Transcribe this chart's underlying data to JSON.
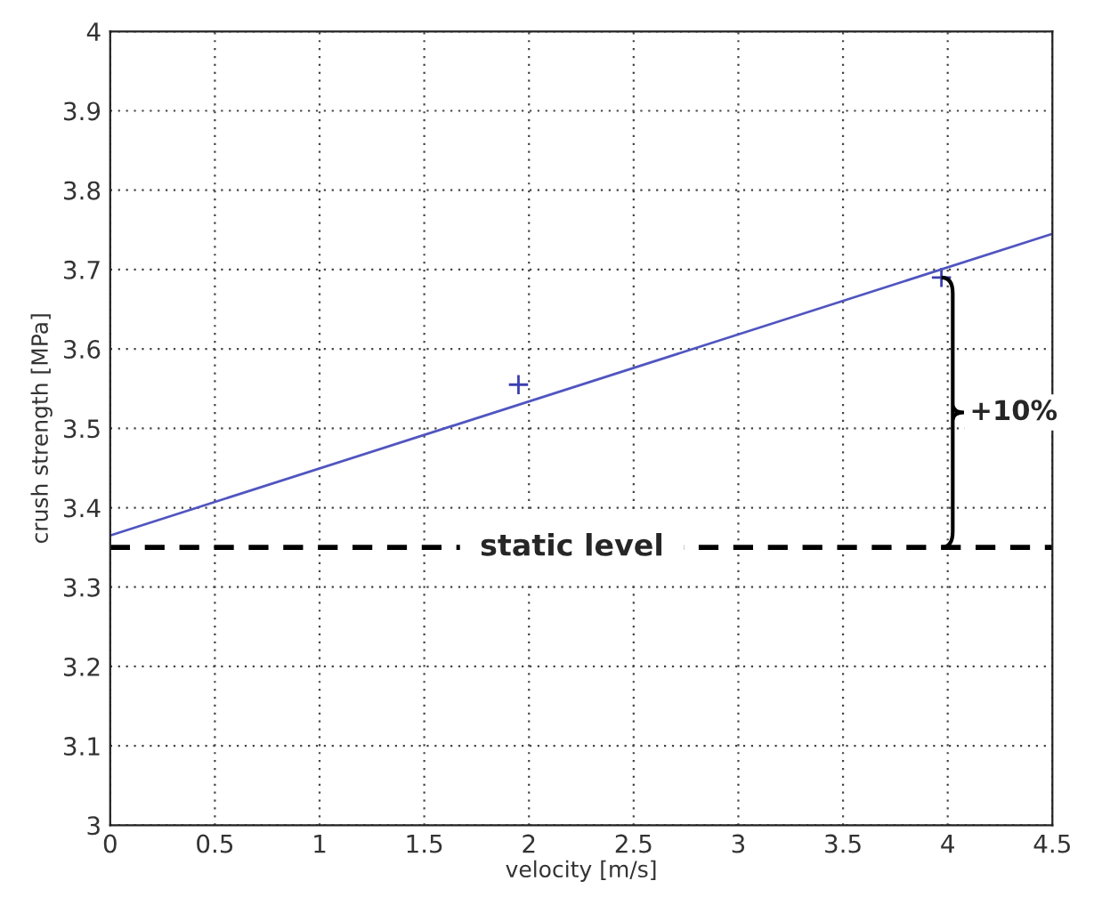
{
  "chart_data": {
    "type": "line",
    "xlabel": "velocity [m/s]",
    "ylabel": "crush strength [MPa]",
    "series": [
      {
        "color": "#5055c0",
        "x": [
          0,
          4.5
        ],
        "values": [
          3.365,
          3.745
        ],
        "marker": "none"
      },
      {
        "type": "scatter",
        "color": "#3a3fb0",
        "x": [
          1.95,
          3.97
        ],
        "values": [
          3.555,
          3.69
        ],
        "marker": "cross"
      }
    ],
    "ref_lines": [
      {
        "axis": "y",
        "value": 3.35,
        "label": "static level",
        "color": "#000000",
        "line_style": "dashed"
      }
    ],
    "annotations": [
      "+10%"
    ],
    "xlim": [
      0,
      4.5
    ],
    "xticks": [
      0,
      0.5,
      1,
      1.5,
      2,
      2.5,
      3,
      3.5,
      4,
      4.5
    ],
    "ylim": [
      3,
      4
    ],
    "yticks": [
      3,
      3.1,
      3.2,
      3.3,
      3.4,
      3.5,
      3.6,
      3.7,
      3.8,
      3.9,
      4
    ],
    "grid": true
  }
}
